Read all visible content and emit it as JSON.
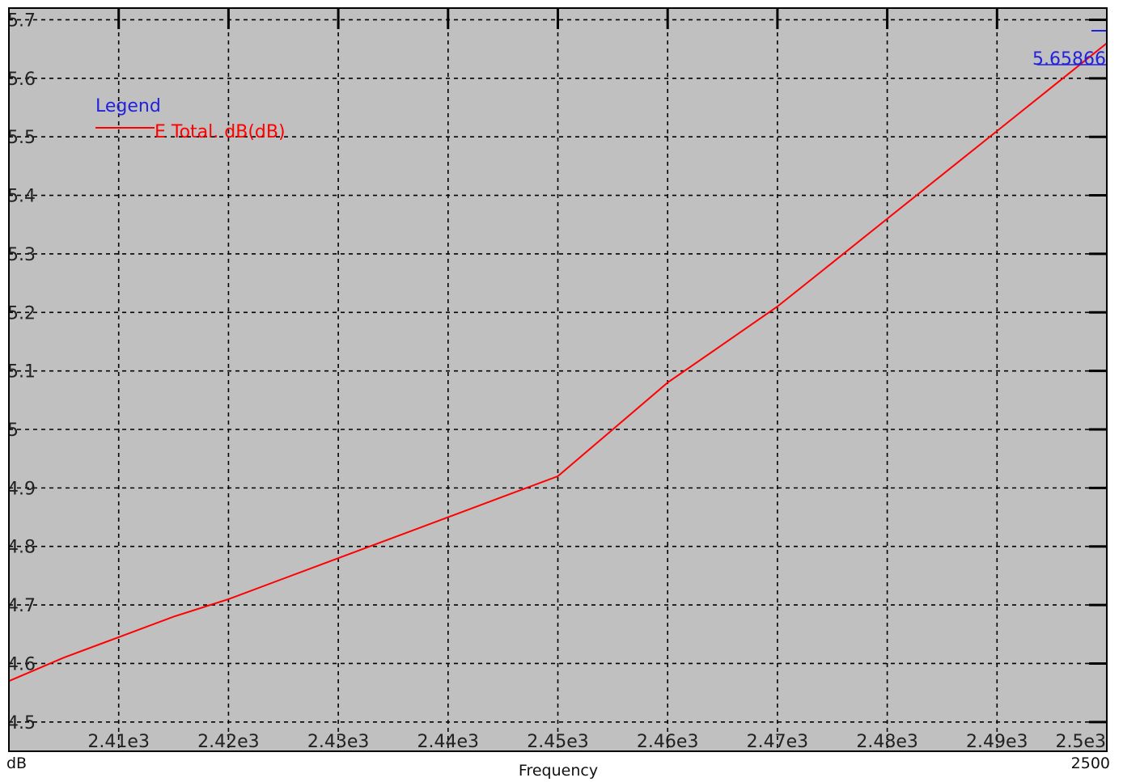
{
  "colors": {
    "plot_background": "#c0c0c0",
    "frame": "#000000",
    "grid": "#000000",
    "series": "#ff0000",
    "legend_title": "#2222dd",
    "marker": "#2222dd"
  },
  "legend": {
    "title": "Legend",
    "placement": "top-left"
  },
  "marker": {
    "label": "5.65866",
    "x": 2500,
    "y": 5.65866
  },
  "bottom": {
    "left_label": "dB",
    "center_label": "Frequency",
    "right_label": "2500"
  },
  "chart_data": {
    "type": "line",
    "title": "",
    "xlabel": "Frequency",
    "ylabel": "dB",
    "grid": true,
    "xlim": [
      2400,
      2500
    ],
    "ylim": [
      4.45,
      5.72
    ],
    "xticks": [
      2410,
      2420,
      2430,
      2440,
      2450,
      2460,
      2470,
      2480,
      2490,
      2500
    ],
    "xtick_labels": [
      "2.41e3",
      "2.42e3",
      "2.43e3",
      "2.44e3",
      "2.45e3",
      "2.46e3",
      "2.47e3",
      "2.48e3",
      "2.49e3",
      "2.5e3"
    ],
    "yticks": [
      4.5,
      4.6,
      4.7,
      4.8,
      4.9,
      5.0,
      5.1,
      5.2,
      5.3,
      5.4,
      5.5,
      5.6,
      5.7
    ],
    "ytick_labels": [
      "4.5",
      "4.6",
      "4.7",
      "4.8",
      "4.9",
      "5",
      "5.1",
      "5.2",
      "5.3",
      "5.4",
      "5.5",
      "5.6",
      "5.7"
    ],
    "series": [
      {
        "name": "E Total. dB(dB)",
        "color": "#ff0000",
        "x": [
          2400,
          2405,
          2410,
          2415,
          2420,
          2425,
          2430,
          2435,
          2440,
          2445,
          2450,
          2455,
          2460,
          2465,
          2470,
          2475,
          2480,
          2485,
          2490,
          2495,
          2500
        ],
        "y": [
          4.57,
          4.61,
          4.645,
          4.68,
          4.71,
          4.745,
          4.78,
          4.815,
          4.85,
          4.885,
          4.92,
          5.0,
          5.08,
          5.145,
          5.21,
          5.285,
          5.36,
          5.435,
          5.51,
          5.585,
          5.66
        ]
      }
    ]
  }
}
